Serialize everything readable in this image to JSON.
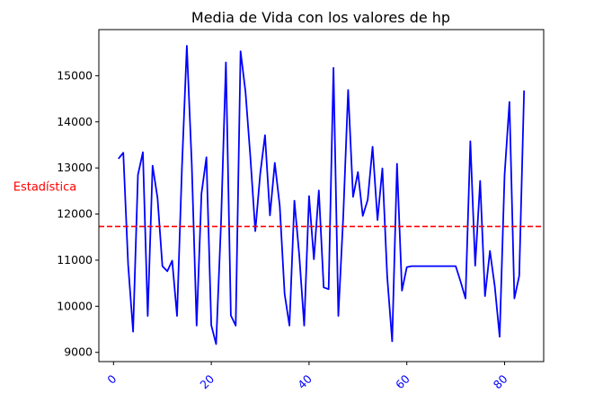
{
  "chart_data": {
    "type": "line",
    "title": "Media de Vida con los valores de hp",
    "xlabel": "",
    "ylabel": "",
    "xlim": [
      -3,
      88
    ],
    "ylim": [
      8800,
      16000
    ],
    "x_ticks": [
      0,
      20,
      40,
      60,
      80
    ],
    "x_tick_labels": [
      "0",
      "20",
      "40",
      "60",
      "80"
    ],
    "y_ticks": [
      9000,
      10000,
      11000,
      12000,
      13000,
      14000,
      15000
    ],
    "y_tick_labels": [
      "9000",
      "10000",
      "11000",
      "12000",
      "13000",
      "14000",
      "15000"
    ],
    "grid": false,
    "series": [
      {
        "color": "#0000ff",
        "x": [
          1,
          2,
          3,
          4,
          5,
          6,
          7,
          8,
          9,
          10,
          11,
          12,
          13,
          14,
          15,
          16,
          17,
          18,
          19,
          20,
          21,
          22,
          23,
          24,
          25,
          26,
          27,
          28,
          29,
          30,
          31,
          32,
          33,
          34,
          35,
          36,
          37,
          38,
          39,
          40,
          41,
          42,
          43,
          44,
          45,
          46,
          47,
          48,
          49,
          50,
          51,
          52,
          53,
          54,
          55,
          56,
          57,
          58,
          59,
          60,
          61,
          62,
          63,
          64,
          65,
          66,
          67,
          68,
          69,
          70,
          71,
          72,
          73,
          74,
          75,
          76,
          77,
          78,
          79,
          80,
          81,
          82,
          83,
          84
        ],
        "values": [
          13200,
          13330,
          10900,
          9450,
          12850,
          13340,
          9790,
          13050,
          12350,
          10870,
          10760,
          10990,
          9790,
          13020,
          15650,
          13080,
          9580,
          12440,
          13230,
          9590,
          9180,
          11830,
          15290,
          9800,
          9580,
          15530,
          14650,
          13240,
          11630,
          12860,
          13710,
          11970,
          13110,
          12180,
          10270,
          9580,
          12290,
          11110,
          9580,
          12390,
          11020,
          12510,
          10410,
          10370,
          15170,
          9790,
          11960,
          14690,
          12370,
          12910,
          11960,
          12310,
          13460,
          11870,
          12990,
          10640,
          9240,
          13090,
          10340,
          10850,
          10870,
          10870,
          10870,
          10870,
          10870,
          10870,
          10870,
          10870,
          10870,
          10870,
          10540,
          10170,
          13580,
          10880,
          12720,
          10220,
          11200,
          10430,
          9340,
          12850,
          14430,
          10170,
          10660,
          14680
        ]
      }
    ],
    "hline": {
      "value": 11730,
      "color": "#ff0000",
      "style": "dashed",
      "label": "Estadística"
    },
    "tick_label_color": "#0000ff",
    "x_tick_rotation": 45
  }
}
